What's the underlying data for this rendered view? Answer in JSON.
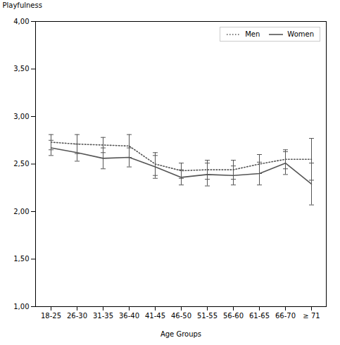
{
  "chart_data": {
    "type": "line",
    "categories": [
      "18-25",
      "26-30",
      "31-35",
      "36-40",
      "41-45",
      "46-50",
      "51-55",
      "56-60",
      "61-65",
      "66-70",
      "≥ 71"
    ],
    "series": [
      {
        "name": "Men",
        "color": "#555555",
        "line_style": "dotted",
        "values": [
          2.73,
          2.71,
          2.7,
          2.69,
          2.5,
          2.43,
          2.44,
          2.44,
          2.5,
          2.55,
          2.55
        ],
        "errors": [
          0.08,
          0.1,
          0.08,
          0.12,
          0.12,
          0.08,
          0.1,
          0.1,
          0.1,
          0.1,
          0.22
        ]
      },
      {
        "name": "Women",
        "color": "#555555",
        "line_style": "solid",
        "values": [
          2.67,
          2.62,
          2.56,
          2.57,
          2.47,
          2.36,
          2.39,
          2.38,
          2.4,
          2.51,
          2.29
        ],
        "errors": [
          0.08,
          0.09,
          0.11,
          0.1,
          0.12,
          0.08,
          0.12,
          0.1,
          0.12,
          0.12,
          0.22
        ]
      }
    ],
    "xlabel": "Age Groups",
    "ylabel": "Playfulness",
    "ylim": [
      1.0,
      4.0
    ],
    "yticks": [
      {
        "value": 1.0,
        "label": "1,00"
      },
      {
        "value": 1.5,
        "label": "1,50"
      },
      {
        "value": 2.0,
        "label": "2,00"
      },
      {
        "value": 2.5,
        "label": "2,50"
      },
      {
        "value": 3.0,
        "label": "3,00"
      },
      {
        "value": 3.5,
        "label": "3,50"
      },
      {
        "value": 4.0,
        "label": "4,00"
      }
    ],
    "legend": "upper right",
    "grid": false
  }
}
